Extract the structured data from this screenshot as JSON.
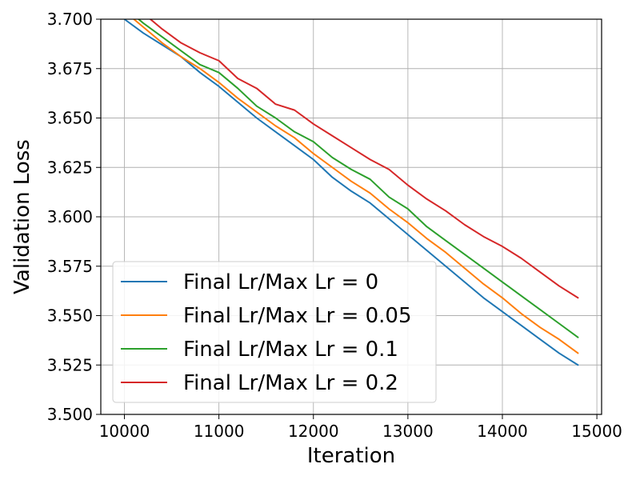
{
  "chart_data": {
    "type": "line",
    "title": "",
    "xlabel": "Iteration",
    "ylabel": "Validation Loss",
    "xlim": [
      9750,
      15050
    ],
    "ylim": [
      3.5,
      3.7
    ],
    "xticks": [
      10000,
      11000,
      12000,
      13000,
      14000,
      15000
    ],
    "xtick_labels": [
      "10000",
      "11000",
      "12000",
      "13000",
      "14000",
      "15000"
    ],
    "yticks": [
      3.5,
      3.525,
      3.55,
      3.575,
      3.6,
      3.625,
      3.65,
      3.675,
      3.7
    ],
    "ytick_labels": [
      "3.500",
      "3.525",
      "3.550",
      "3.575",
      "3.600",
      "3.625",
      "3.650",
      "3.675",
      "3.700"
    ],
    "grid": true,
    "legend_position": "lower-left",
    "x": [
      10000,
      10200,
      10400,
      10600,
      10800,
      11000,
      11200,
      11400,
      11600,
      11800,
      12000,
      12200,
      12400,
      12600,
      12800,
      13000,
      13200,
      13400,
      13600,
      13800,
      14000,
      14200,
      14400,
      14600,
      14800
    ],
    "series": [
      {
        "name": "Final Lr/Max Lr = 0",
        "color": "#1f77b4",
        "values": [
          3.7,
          3.693,
          3.687,
          3.681,
          3.673,
          3.666,
          3.658,
          3.65,
          3.643,
          3.636,
          3.629,
          3.62,
          3.613,
          3.607,
          3.599,
          3.591,
          3.583,
          3.575,
          3.567,
          3.559,
          3.552,
          3.545,
          3.538,
          3.531,
          3.525
        ]
      },
      {
        "name": "Final Lr/Max Lr = 0.05",
        "color": "#ff7f0e",
        "values": [
          3.704,
          3.696,
          3.688,
          3.681,
          3.675,
          3.668,
          3.66,
          3.653,
          3.646,
          3.64,
          3.632,
          3.625,
          3.618,
          3.612,
          3.604,
          3.597,
          3.589,
          3.582,
          3.574,
          3.566,
          3.559,
          3.551,
          3.544,
          3.538,
          3.531
        ]
      },
      {
        "name": "Final Lr/Max Lr = 0.1",
        "color": "#2ca02c",
        "values": [
          3.706,
          3.698,
          3.691,
          3.684,
          3.677,
          3.673,
          3.665,
          3.656,
          3.65,
          3.643,
          3.638,
          3.63,
          3.624,
          3.619,
          3.61,
          3.604,
          3.595,
          3.588,
          3.581,
          3.574,
          3.567,
          3.56,
          3.553,
          3.546,
          3.539
        ]
      },
      {
        "name": "Final Lr/Max Lr = 0.2",
        "color": "#d62728",
        "values": [
          3.71,
          3.703,
          3.695,
          3.688,
          3.683,
          3.679,
          3.67,
          3.665,
          3.657,
          3.654,
          3.647,
          3.641,
          3.635,
          3.629,
          3.624,
          3.616,
          3.609,
          3.603,
          3.596,
          3.59,
          3.585,
          3.579,
          3.572,
          3.565,
          3.559
        ]
      }
    ]
  }
}
